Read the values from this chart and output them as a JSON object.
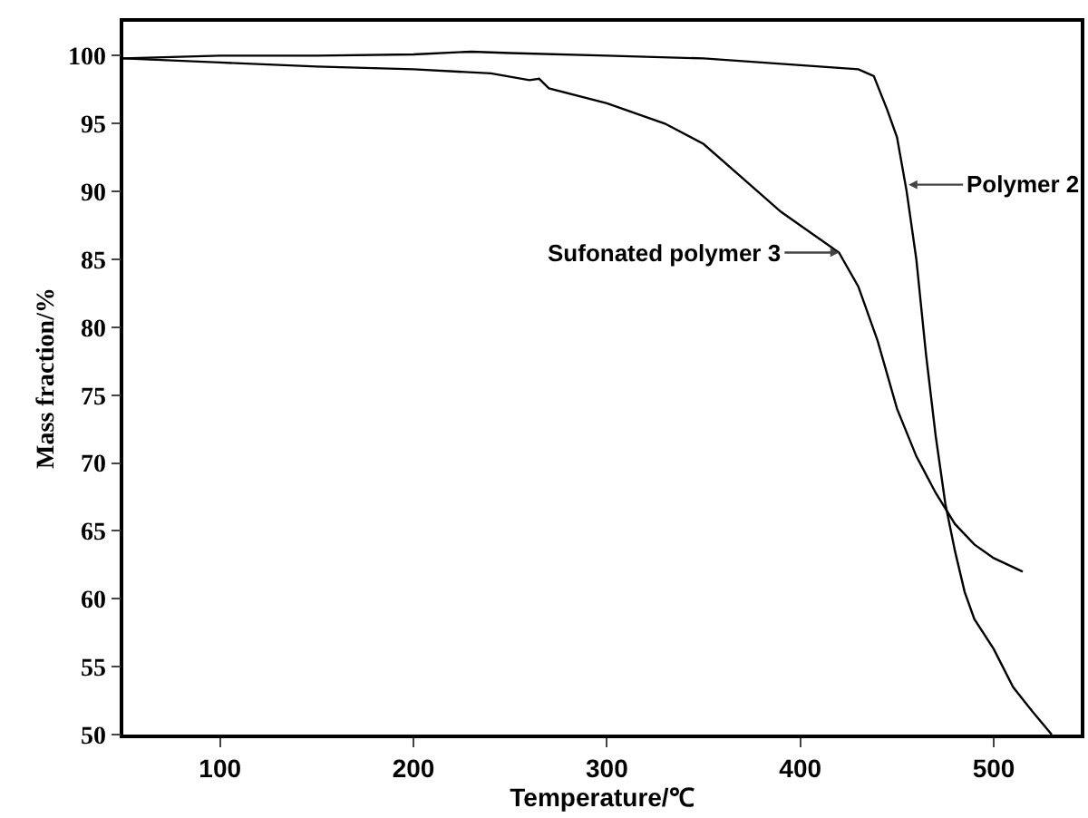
{
  "chart_data": {
    "type": "line",
    "xlabel": "Temperature/℃",
    "ylabel": "Mass fraction/%",
    "series": [
      {
        "color": "#000000",
        "x": [
          50,
          100,
          150,
          200,
          230,
          250,
          300,
          350,
          400,
          430,
          438,
          445,
          450,
          455,
          460,
          465,
          470,
          475,
          480,
          485,
          490,
          500,
          510,
          520,
          530
        ],
        "values": [
          99.8,
          100,
          100,
          100.1,
          100.3,
          100.2,
          100,
          99.8,
          99.3,
          99,
          98.5,
          96,
          94,
          90,
          85,
          78,
          72,
          67,
          63.5,
          60.5,
          58.5,
          56.3,
          53.5,
          51.7,
          50
        ]
      },
      {
        "color": "#000000",
        "x": [
          50,
          100,
          150,
          200,
          240,
          260,
          265,
          270,
          300,
          330,
          350,
          370,
          390,
          410,
          420,
          430,
          440,
          450,
          460,
          470,
          480,
          490,
          500,
          515
        ],
        "values": [
          99.8,
          99.5,
          99.2,
          99,
          98.7,
          98.2,
          98.3,
          97.6,
          96.5,
          95,
          93.5,
          91,
          88.5,
          86.5,
          85.5,
          83,
          79,
          74,
          70.5,
          67.8,
          65.5,
          64,
          63,
          62
        ]
      }
    ],
    "annotations": [
      {
        "text": "Polymer 2",
        "x": 456,
        "y": 90.5
      },
      {
        "text": "Sufonated polymer 3",
        "x": 420,
        "y": 85.5
      }
    ],
    "xlim": [
      50,
      545
    ],
    "ylim": [
      50,
      102.5
    ],
    "xticks": [
      100,
      200,
      300,
      400,
      500
    ],
    "yticks": [
      50,
      55,
      60,
      65,
      70,
      75,
      80,
      85,
      90,
      95,
      100
    ],
    "grid": false,
    "marker": "none",
    "line_style": "solid"
  }
}
